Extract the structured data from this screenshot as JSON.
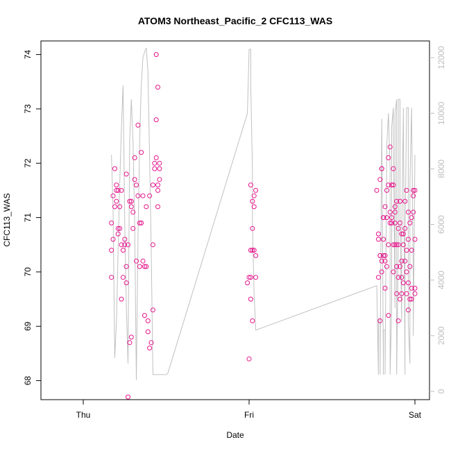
{
  "chart_data": {
    "type": "scatter",
    "title": "ATOM3 Northeast_Pacific_2 CFC113_WAS",
    "xlabel": "Date",
    "ylabel": "CFC113_WAS",
    "x_ticks": [
      "Thu",
      "Fri",
      "Sat"
    ],
    "ylim": [
      67.65,
      74.25
    ],
    "y_ticks": [
      68,
      69,
      70,
      71,
      72,
      73,
      74
    ],
    "y2lim": [
      -300,
      12600
    ],
    "y2_ticks": [
      0,
      2000,
      4000,
      6000,
      8000,
      10000,
      12000
    ],
    "grid": false,
    "legend": "none",
    "colors": {
      "points": "#e6148c",
      "altitude": "#c0c0c0",
      "axis": "#000000",
      "right_axis": "#bdbdbd"
    },
    "series": [
      {
        "marker": "circle",
        "x": [
          -0.83,
          -0.83,
          -0.83,
          -0.82,
          -0.82,
          -0.81,
          -0.81,
          -0.8,
          -0.8,
          -0.8,
          -0.79,
          -0.79,
          -0.79,
          -0.78,
          -0.78,
          -0.77,
          -0.77,
          -0.77,
          -0.76,
          -0.76,
          -0.75,
          -0.75,
          -0.74,
          -0.74,
          -0.74,
          -0.73,
          -0.73,
          -0.72,
          -0.72,
          -0.71,
          -0.71,
          -0.71,
          -0.7,
          -0.7,
          -0.69,
          -0.69,
          -0.68,
          -0.68,
          -0.67,
          -0.67,
          -0.66,
          -0.66,
          -0.65,
          -0.65,
          -0.64,
          -0.64,
          -0.63,
          -0.63,
          -0.62,
          -0.62,
          -0.61,
          -0.61,
          -0.6,
          -0.6,
          -0.59,
          -0.58,
          -0.58,
          -0.58,
          -0.57,
          -0.57,
          -0.56,
          -0.56,
          -0.56,
          -0.55,
          -0.55,
          -0.55,
          -0.55,
          -0.54,
          -0.54,
          -0.54,
          -0.01,
          0.0,
          0.0,
          0.01,
          0.01,
          0.01,
          0.01,
          0.02,
          0.02,
          0.02,
          0.02,
          0.03,
          0.03,
          0.03,
          0.04,
          0.04,
          0.04
        ],
        "y": [
          69.9,
          70.4,
          70.9,
          70.6,
          71.4,
          71.2,
          71.9,
          71.5,
          71.6,
          71.3,
          70.8,
          71.5,
          70.7,
          70.8,
          71.2,
          69.5,
          70.5,
          71.5,
          69.9,
          70.4,
          70.5,
          70.6,
          70.1,
          69.8,
          71.8,
          70.5,
          67.7,
          71.3,
          68.7,
          68.8,
          71.2,
          71.3,
          70.8,
          71.1,
          71.7,
          72.1,
          70.2,
          71.6,
          71.4,
          72.7,
          70.1,
          70.9,
          72.2,
          70.9,
          70.2,
          71.4,
          70.1,
          69.2,
          71.2,
          70.1,
          69.1,
          68.9,
          71.4,
          68.6,
          68.7,
          69.3,
          70.5,
          71.6,
          72.0,
          71.9,
          72.1,
          72.8,
          74.0,
          73.4,
          71.6,
          71.5,
          71.2,
          72.0,
          71.9,
          71.7,
          69.8,
          68.4,
          69.9,
          70.4,
          69.9,
          71.6,
          69.5,
          70.8,
          69.1,
          71.3,
          70.4,
          71.4,
          70.4,
          71.2,
          70.3,
          69.9,
          71.5
        ]
      },
      {
        "marker": "circle",
        "x": [
          0.77,
          0.78,
          0.78,
          0.78,
          0.79,
          0.79,
          0.79,
          0.79,
          0.8,
          0.8,
          0.8,
          0.8,
          0.81,
          0.81,
          0.81,
          0.81,
          0.82,
          0.82,
          0.82,
          0.82,
          0.83,
          0.83,
          0.83,
          0.84,
          0.84,
          0.84,
          0.84,
          0.85,
          0.85,
          0.85,
          0.86,
          0.86,
          0.86,
          0.87,
          0.87,
          0.87,
          0.87,
          0.88,
          0.88,
          0.88,
          0.88,
          0.89,
          0.89,
          0.89,
          0.89,
          0.9,
          0.9,
          0.9,
          0.9,
          0.91,
          0.91,
          0.91,
          0.91,
          0.92,
          0.92,
          0.92,
          0.92,
          0.93,
          0.93,
          0.93,
          0.94,
          0.94,
          0.94,
          0.95,
          0.95,
          0.95,
          0.95,
          0.96,
          0.96,
          0.96,
          0.96,
          0.97,
          0.97,
          0.97,
          0.98,
          0.98,
          0.98,
          0.98,
          0.99,
          0.99,
          0.99,
          1.0,
          1.0,
          1.0,
          1.0
        ],
        "y": [
          71.5,
          70.7,
          69.9,
          70.6,
          69.1,
          70.3,
          70.3,
          71.7,
          70.0,
          71.9,
          70.2,
          71.9,
          70.6,
          71.0,
          70.3,
          71.0,
          70.2,
          71.2,
          69.7,
          70.3,
          71.0,
          71.5,
          70.1,
          70.5,
          71.6,
          72.1,
          69.2,
          71.1,
          70.9,
          72.3,
          71.0,
          70.9,
          71.6,
          70.5,
          71.6,
          71.9,
          70.0,
          71.1,
          70.9,
          70.5,
          71.2,
          70.5,
          70.1,
          71.3,
          69.6,
          69.9,
          70.5,
          70.8,
          69.1,
          69.5,
          70.9,
          70.1,
          71.3,
          69.6,
          70.7,
          70.2,
          69.9,
          70.5,
          69.8,
          70.7,
          70.2,
          71.3,
          70.8,
          69.6,
          70.0,
          71.5,
          70.4,
          69.3,
          70.6,
          69.8,
          71.1,
          70.1,
          69.5,
          70.9,
          70.4,
          71.0,
          69.5,
          69.7,
          71.5,
          71.4,
          71.1,
          70.6,
          69.7,
          71.5,
          69.6
        ]
      },
      {
        "type": "line",
        "axis": "right",
        "x": [
          -0.83,
          -0.82,
          -0.81,
          -0.8,
          -0.79,
          -0.78,
          -0.77,
          -0.76,
          -0.75,
          -0.74,
          -0.73,
          -0.72,
          -0.71,
          -0.7,
          -0.69,
          -0.68,
          -0.67,
          -0.66,
          -0.65,
          -0.64,
          -0.63,
          -0.62,
          -0.61,
          -0.6,
          -0.59,
          -0.58,
          -0.57,
          -0.56,
          -0.55,
          -0.54,
          -0.52,
          -0.5,
          -0.49,
          -0.01,
          0.0,
          0.0,
          0.01,
          0.01,
          0.02,
          0.02,
          0.03,
          0.04,
          0.77,
          0.77,
          0.78,
          0.78,
          0.79,
          0.79,
          0.8,
          0.8,
          0.81,
          0.81,
          0.82,
          0.82,
          0.83,
          0.84,
          0.85,
          0.85,
          0.86,
          0.86,
          0.87,
          0.87,
          0.88,
          0.88,
          0.89,
          0.89,
          0.9,
          0.9,
          0.91,
          0.91,
          0.92,
          0.92,
          0.93,
          0.93,
          0.94,
          0.94,
          0.95,
          0.96,
          0.96,
          0.97,
          0.97,
          0.98,
          0.98,
          0.99,
          0.99,
          1.0,
          1.0
        ],
        "y": [
          8500,
          6500,
          1200,
          2500,
          5000,
          7500,
          9500,
          11000,
          6000,
          3000,
          1000,
          9000,
          10500,
          9000,
          6000,
          400,
          5500,
          9000,
          11000,
          12000,
          12200,
          12350,
          11500,
          8500,
          5000,
          600,
          600,
          600,
          600,
          600,
          600,
          600,
          650,
          10000,
          12300,
          12300,
          12300,
          11000,
          8000,
          6000,
          3500,
          2200,
          3800,
          3800,
          600,
          2600,
          2600,
          600,
          9800,
          9800,
          600,
          2200,
          2200,
          600,
          8800,
          10000,
          8000,
          600,
          3000,
          9500,
          10200,
          9500,
          3000,
          10000,
          10500,
          600,
          5500,
          10500,
          10500,
          6500,
          2500,
          5500,
          10000,
          10200,
          600,
          5500,
          10200,
          10200,
          2500,
          1000,
          7500,
          10200,
          10200,
          4000,
          2000,
          8500,
          8500
        ]
      }
    ]
  }
}
